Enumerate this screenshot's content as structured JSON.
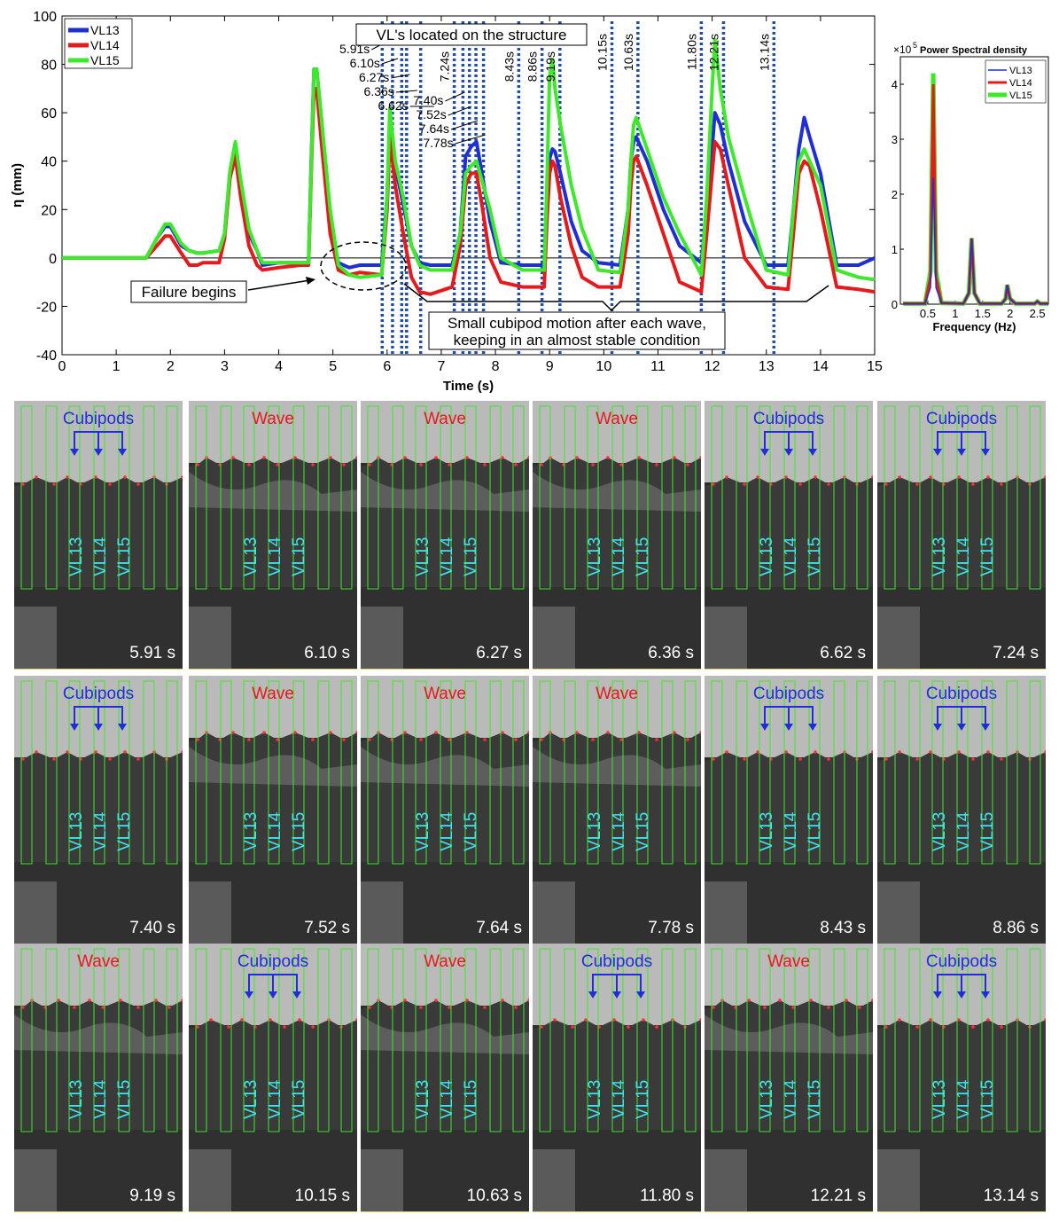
{
  "chart_data": [
    {
      "type": "line",
      "xlabel": "Time (s)",
      "ylabel": "η (mm)",
      "xlim": [
        0,
        15
      ],
      "ylim": [
        -40,
        100
      ],
      "xticks": [
        0,
        1,
        2,
        3,
        4,
        5,
        6,
        7,
        8,
        9,
        10,
        11,
        12,
        13,
        14,
        15
      ],
      "yticks": [
        -40,
        -20,
        0,
        20,
        40,
        60,
        80,
        100
      ],
      "legend_position": "top-left",
      "grid": false,
      "series": [
        {
          "name": "VL13",
          "color": "#1f2fd6",
          "x": [
            0,
            1.55,
            1.75,
            1.9,
            2.0,
            2.2,
            2.35,
            2.5,
            2.6,
            2.9,
            3.0,
            3.1,
            3.2,
            3.3,
            3.45,
            3.6,
            3.7,
            4.0,
            4.4,
            4.55,
            4.6,
            4.65,
            4.7,
            4.8,
            4.95,
            5.1,
            5.3,
            5.5,
            5.9,
            6.0,
            6.05,
            6.15,
            6.3,
            6.45,
            6.6,
            6.8,
            7.2,
            7.35,
            7.45,
            7.55,
            7.65,
            7.75,
            7.9,
            8.1,
            8.5,
            8.9,
            8.95,
            9.0,
            9.05,
            9.1,
            9.2,
            9.4,
            9.6,
            9.9,
            10.3,
            10.45,
            10.5,
            10.55,
            10.6,
            10.8,
            11.1,
            11.4,
            11.8,
            11.9,
            12.0,
            12.05,
            12.15,
            12.3,
            12.6,
            13.0,
            13.4,
            13.5,
            13.6,
            13.7,
            13.8,
            14.0,
            14.3,
            14.7,
            15.0
          ],
          "y": [
            0,
            0,
            8,
            13,
            13,
            5,
            3,
            2,
            2,
            3,
            10,
            35,
            45,
            30,
            10,
            3,
            -3,
            -2,
            -2,
            -2,
            40,
            78,
            78,
            55,
            15,
            -2,
            -4,
            -3,
            -3,
            25,
            55,
            38,
            22,
            5,
            -2,
            -3,
            -3,
            10,
            42,
            46,
            48,
            35,
            15,
            -2,
            -3,
            -3,
            25,
            41,
            45,
            44,
            35,
            15,
            3,
            -2,
            -3,
            20,
            40,
            48,
            50,
            40,
            20,
            5,
            -2,
            20,
            45,
            60,
            55,
            40,
            15,
            -3,
            -3,
            20,
            45,
            58,
            50,
            35,
            -3,
            -3,
            0
          ]
        },
        {
          "name": "VL14",
          "color": "#e41a1c",
          "x": [
            0,
            1.55,
            1.75,
            1.9,
            2.0,
            2.2,
            2.35,
            2.5,
            2.6,
            2.9,
            3.0,
            3.1,
            3.2,
            3.3,
            3.45,
            3.6,
            3.7,
            4.0,
            4.4,
            4.55,
            4.6,
            4.65,
            4.7,
            4.8,
            4.95,
            5.1,
            5.3,
            5.5,
            5.9,
            6.0,
            6.05,
            6.15,
            6.3,
            6.45,
            6.6,
            6.8,
            7.2,
            7.35,
            7.45,
            7.55,
            7.65,
            7.75,
            7.9,
            8.1,
            8.5,
            8.9,
            8.95,
            9.0,
            9.05,
            9.1,
            9.2,
            9.4,
            9.6,
            9.9,
            10.3,
            10.45,
            10.5,
            10.55,
            10.6,
            10.8,
            11.1,
            11.4,
            11.8,
            11.9,
            12.0,
            12.05,
            12.15,
            12.3,
            12.6,
            13.0,
            13.4,
            13.5,
            13.6,
            13.7,
            13.8,
            14.0,
            14.3,
            14.7,
            15.0
          ],
          "y": [
            0,
            0,
            5,
            9,
            9,
            2,
            -3,
            -3,
            -2,
            -2,
            8,
            33,
            42,
            25,
            5,
            -3,
            -5,
            -4,
            -3,
            -3,
            35,
            70,
            70,
            45,
            10,
            -5,
            -7,
            -6,
            -7,
            20,
            50,
            30,
            10,
            -8,
            -14,
            -15,
            -12,
            5,
            30,
            35,
            35,
            22,
            0,
            -10,
            -12,
            -12,
            15,
            35,
            40,
            38,
            25,
            5,
            -8,
            -12,
            -12,
            10,
            30,
            40,
            42,
            30,
            10,
            -10,
            -14,
            10,
            35,
            48,
            45,
            30,
            0,
            -12,
            -13,
            10,
            35,
            40,
            38,
            20,
            -12,
            -13,
            -14
          ]
        },
        {
          "name": "VL15",
          "color": "#3ee82a",
          "x": [
            0,
            1.55,
            1.75,
            1.9,
            2.0,
            2.2,
            2.35,
            2.5,
            2.6,
            2.9,
            3.0,
            3.1,
            3.2,
            3.3,
            3.45,
            3.6,
            3.7,
            4.0,
            4.4,
            4.55,
            4.6,
            4.65,
            4.7,
            4.8,
            4.95,
            5.1,
            5.3,
            5.5,
            5.9,
            6.0,
            6.05,
            6.15,
            6.3,
            6.45,
            6.6,
            6.8,
            7.2,
            7.35,
            7.45,
            7.55,
            7.65,
            7.75,
            7.9,
            8.1,
            8.5,
            8.9,
            8.95,
            9.0,
            9.05,
            9.1,
            9.2,
            9.4,
            9.6,
            9.9,
            10.3,
            10.45,
            10.5,
            10.55,
            10.6,
            10.8,
            11.1,
            11.4,
            11.8,
            11.9,
            12.0,
            12.05,
            12.15,
            12.3,
            12.6,
            13.0,
            13.4,
            13.5,
            13.6,
            13.7,
            13.8,
            14.0,
            14.3,
            14.7,
            15.0
          ],
          "y": [
            0,
            0,
            8,
            14,
            14,
            6,
            3,
            2,
            2,
            3,
            10,
            36,
            48,
            32,
            12,
            3,
            -2,
            -2,
            -2,
            -2,
            38,
            78,
            78,
            55,
            20,
            -3,
            -7,
            -8,
            -7,
            25,
            62,
            40,
            25,
            5,
            -3,
            -5,
            -5,
            10,
            35,
            38,
            40,
            32,
            20,
            0,
            -5,
            -5,
            30,
            75,
            82,
            70,
            55,
            30,
            12,
            -5,
            -6,
            20,
            40,
            55,
            58,
            45,
            25,
            10,
            -7,
            25,
            70,
            90,
            70,
            50,
            25,
            -5,
            -7,
            20,
            40,
            45,
            40,
            30,
            -5,
            -8,
            -9
          ]
        }
      ],
      "vertical_lines": [
        5.91,
        6.1,
        6.27,
        6.36,
        6.62,
        7.24,
        7.4,
        7.52,
        7.64,
        7.78,
        8.43,
        8.86,
        9.19,
        10.15,
        10.63,
        11.8,
        12.21,
        13.14
      ],
      "vertical_line_labels": [
        "5.91s",
        "6.10s",
        "6.27s",
        "6.36s",
        "6.62s",
        "7.24s",
        "7.40s",
        "7.52s",
        "7.64s",
        "7.78s",
        "8.43s",
        "8.86s",
        "9.19s",
        "10.15s",
        "10.63s",
        "11.80s",
        "12.21s",
        "13.14s"
      ],
      "annotations": {
        "vl_title": "VL's located on the structure",
        "failure": "Failure begins",
        "motion_line1": "Small cubipod motion after each wave,",
        "motion_line2": "keeping in an almost stable condition"
      }
    },
    {
      "type": "line",
      "title": "Power Spectral density",
      "multiplier_base": "×10",
      "multiplier_exp": "5",
      "xlabel": "Frequency (Hz)",
      "xlim": [
        0,
        2.7
      ],
      "ylim": [
        0,
        4.5
      ],
      "xticks": [
        0.5,
        1,
        1.5,
        2,
        2.5
      ],
      "xtick_labels": [
        "0.5",
        "1",
        "1.5",
        "2",
        "2.5"
      ],
      "yticks": [
        0,
        1,
        2,
        3,
        4
      ],
      "legend_position": "top-right",
      "series": [
        {
          "name": "VL13",
          "color": "#1f2fd6",
          "x": [
            0.05,
            0.45,
            0.55,
            0.6,
            0.65,
            0.75,
            1.15,
            1.25,
            1.3,
            1.35,
            1.45,
            1.85,
            1.92,
            1.95,
            2.0,
            2.1,
            2.45,
            2.5,
            2.55,
            2.7
          ],
          "y": [
            0.01,
            0.01,
            0.3,
            2.3,
            0.3,
            0.02,
            0.01,
            0.2,
            1.2,
            0.2,
            0.01,
            0.01,
            0.1,
            0.35,
            0.1,
            0.01,
            0.01,
            0.05,
            0.01,
            0.01
          ]
        },
        {
          "name": "VL14",
          "color": "#e41a1c",
          "x": [
            0.05,
            0.45,
            0.55,
            0.6,
            0.65,
            0.75,
            1.15,
            1.25,
            1.3,
            1.35,
            1.45,
            1.85,
            1.92,
            1.95,
            2.0,
            2.1,
            2.45,
            2.5,
            2.55,
            2.7
          ],
          "y": [
            0.01,
            0.01,
            0.5,
            4.0,
            0.5,
            0.02,
            0.01,
            0.2,
            1.2,
            0.2,
            0.01,
            0.01,
            0.1,
            0.35,
            0.1,
            0.01,
            0.01,
            0.05,
            0.01,
            0.01
          ]
        },
        {
          "name": "VL15",
          "color": "#3ee82a",
          "x": [
            0.05,
            0.45,
            0.55,
            0.6,
            0.65,
            0.75,
            1.15,
            1.25,
            1.3,
            1.35,
            1.45,
            1.85,
            1.92,
            1.95,
            2.0,
            2.1,
            2.45,
            2.5,
            2.55,
            2.7
          ],
          "y": [
            0.01,
            0.01,
            0.6,
            4.2,
            0.6,
            0.02,
            0.01,
            0.2,
            1.2,
            0.2,
            0.01,
            0.01,
            0.1,
            0.35,
            0.1,
            0.01,
            0.01,
            0.05,
            0.01,
            0.01
          ]
        }
      ]
    }
  ],
  "frames": [
    {
      "time": "5.91 s",
      "annotation": "Cubipods",
      "kind": "cubipods"
    },
    {
      "time": "6.10 s",
      "annotation": "Wave",
      "kind": "wave"
    },
    {
      "time": "6.27 s",
      "annotation": "Wave",
      "kind": "wave"
    },
    {
      "time": "6.36 s",
      "annotation": "Wave",
      "kind": "wave"
    },
    {
      "time": "6.62 s",
      "annotation": "Cubipods",
      "kind": "cubipods"
    },
    {
      "time": "7.24 s",
      "annotation": "Cubipods",
      "kind": "cubipods"
    },
    {
      "time": "7.40 s",
      "annotation": "Cubipods",
      "kind": "cubipods"
    },
    {
      "time": "7.52 s",
      "annotation": "Wave",
      "kind": "wave"
    },
    {
      "time": "7.64 s",
      "annotation": "Wave",
      "kind": "wave"
    },
    {
      "time": "7.78 s",
      "annotation": "Wave",
      "kind": "wave"
    },
    {
      "time": "8.43 s",
      "annotation": "Cubipods",
      "kind": "cubipods"
    },
    {
      "time": "8.86 s",
      "annotation": "Cubipods",
      "kind": "cubipods"
    },
    {
      "time": "9.19 s",
      "annotation": "Wave",
      "kind": "wave"
    },
    {
      "time": "10.15 s",
      "annotation": "Cubipods",
      "kind": "cubipods"
    },
    {
      "time": "10.63 s",
      "annotation": "Wave",
      "kind": "wave"
    },
    {
      "time": "11.80 s",
      "annotation": "Cubipods",
      "kind": "cubipods"
    },
    {
      "time": "12.21 s",
      "annotation": "Wave",
      "kind": "wave"
    },
    {
      "time": "13.14 s",
      "annotation": "Cubipods",
      "kind": "cubipods"
    }
  ],
  "frame_vl_labels": [
    "VL13",
    "VL14",
    "VL15"
  ]
}
